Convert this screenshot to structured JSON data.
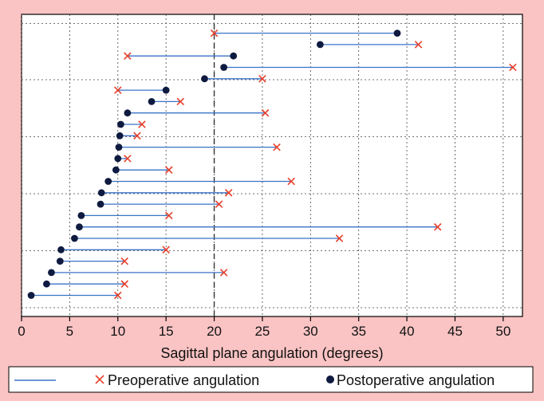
{
  "chart_data": {
    "type": "dumbbell",
    "title": "",
    "xlabel": "Sagittal plane angulation (degrees)",
    "ylabel": "",
    "xlim": [
      0,
      52
    ],
    "xticks": [
      0,
      5,
      10,
      15,
      20,
      25,
      30,
      35,
      40,
      45,
      50
    ],
    "reference_line": {
      "x": 20,
      "style": "dashed"
    },
    "grid": "dotted",
    "legend_position": "bottom",
    "colors": {
      "line": "#3a73c8",
      "preop": "#e8402a",
      "postop": "#0e1a3f",
      "background": "#fbc4c4",
      "plot": "#ffffff"
    },
    "legend": {
      "line_label": "",
      "preop_label": "Preoperative angulation",
      "postop_label": "Postoperative angulation"
    },
    "series": [
      {
        "name": "Preoperative angulation",
        "values": [
          20,
          41.2,
          11,
          51,
          25,
          10,
          16.5,
          25.3,
          12.5,
          12,
          26.5,
          11,
          15.3,
          28,
          21.5,
          20.5,
          15.3,
          43.2,
          33,
          15,
          10.7,
          21,
          10.7,
          10
        ]
      },
      {
        "name": "Postoperative angulation",
        "values": [
          39,
          31,
          22,
          21,
          19,
          15,
          13.5,
          11,
          10.3,
          10.2,
          10.1,
          10,
          9.8,
          9,
          8.3,
          8.2,
          6.2,
          6,
          5.5,
          4.1,
          4,
          3.1,
          2.6,
          1
        ]
      }
    ]
  }
}
